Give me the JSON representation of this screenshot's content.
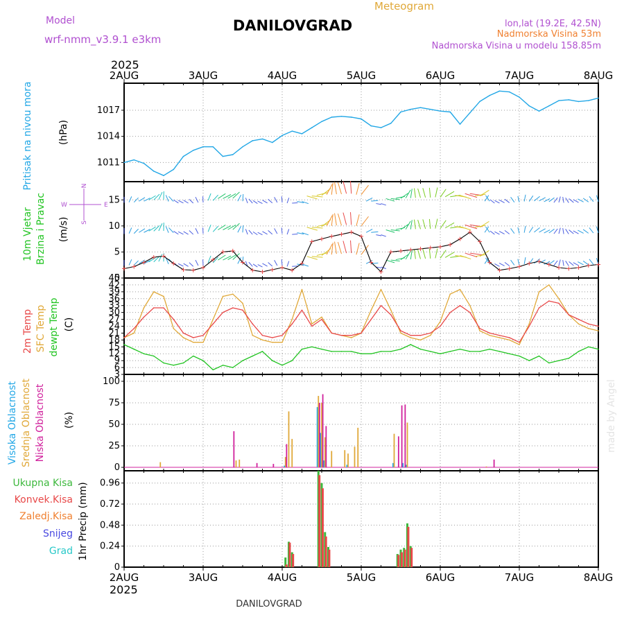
{
  "header": {
    "model_label": "Model",
    "model_name": "wrf-nmm_v3.9.1 e3km",
    "station_title": "DANILOVGRAD",
    "subtitle": "Meteogram",
    "coords": "lon,lat (19.2E, 42.5N)",
    "elevation": "Nadmorska Visina 53m",
    "model_elevation": "Nadmorska Visina u modelu 158.85m",
    "year": "2025",
    "footer_station": "DANILOVGRAD",
    "credit": "made by Angel"
  },
  "colors": {
    "pressure": "#22a7e6",
    "temp2m": "#e84848",
    "sfc_temp": "#e0a838",
    "dewpoint": "#22c422",
    "high_cloud": "#22a7e6",
    "mid_cloud": "#e0a838",
    "low_cloud": "#d0209c",
    "total_precip": "#3cb83c",
    "convective_precip": "#e84848",
    "frozen_precip": "#f08030",
    "snow": "#4848e0",
    "hail": "#28c8c8",
    "header_purple": "#b050d0",
    "header_orange": "#e0a838",
    "wind_label_purple": "#b050d0"
  },
  "axis": {
    "day_ticks": [
      "2AUG",
      "3AUG",
      "4AUG",
      "5AUG",
      "6AUG",
      "7AUG",
      "8AUG"
    ]
  },
  "legend": {
    "pressure": {
      "label": "Pritisak na nivou mora",
      "unit": "(hPa)"
    },
    "wind": {
      "label1": "10m Vjetar",
      "label2": "Brzina i Pravac",
      "unit": "(m/s)",
      "compass_n": "N",
      "compass_s": "S",
      "compass_w": "W",
      "compass_e": "E"
    },
    "temp": {
      "label1": "2m Temp",
      "label2": "SFC Temp",
      "label3": "dewpt Temp",
      "unit": "(C)"
    },
    "cloud": {
      "label1": "Visoka Oblacnost",
      "label2": "Srednja Oblacnost",
      "label3": "Niska Oblacnost",
      "unit": "(%)"
    },
    "precip": {
      "total": "Ukupna Kisa",
      "convective": "Konvek.Kisa",
      "frozen": "Zaledj.Kisa",
      "snow": "Snijeg",
      "hail": "Grad",
      "axis_label": "1hr Precip (mm)"
    }
  },
  "chart_data": [
    {
      "panel": "pressure",
      "type": "line",
      "title": "Pritisak na nivou mora",
      "ylabel": "(hPa)",
      "ylim": [
        1008.8,
        1020.1
      ],
      "yticks": [
        1011,
        1014,
        1017
      ],
      "x_unit": "hours since 2 Aug 00:00",
      "x_range": [
        0,
        144
      ],
      "series": [
        {
          "name": "Pritisak na nivou mora",
          "x": [
            0,
            3,
            6,
            9,
            12,
            15,
            18,
            21,
            24,
            27,
            30,
            33,
            36,
            39,
            42,
            45,
            48,
            51,
            54,
            57,
            60,
            63,
            66,
            69,
            72,
            75,
            78,
            81,
            84,
            87,
            90,
            93,
            96,
            99,
            102,
            105,
            108,
            111,
            114,
            117,
            120,
            123,
            126,
            129,
            132,
            135,
            138,
            141,
            144
          ],
          "values": [
            1011.0,
            1011.3,
            1010.9,
            1010.0,
            1009.5,
            1010.2,
            1011.7,
            1012.4,
            1012.8,
            1012.8,
            1011.7,
            1011.9,
            1012.8,
            1013.5,
            1013.7,
            1013.3,
            1014.1,
            1014.6,
            1014.3,
            1015.0,
            1015.7,
            1016.2,
            1016.3,
            1016.2,
            1016.0,
            1015.2,
            1015.0,
            1015.5,
            1016.8,
            1017.1,
            1017.3,
            1017.1,
            1016.9,
            1016.8,
            1015.4,
            1016.7,
            1018.0,
            1018.7,
            1019.2,
            1019.1,
            1018.5,
            1017.5,
            1016.9,
            1017.5,
            1018.1,
            1018.2,
            1018.0,
            1018.1,
            1018.4
          ]
        }
      ]
    },
    {
      "panel": "wind",
      "type": "line",
      "title": "10m Vjetar Brzina i Pravac",
      "ylabel": "(m/s)",
      "ylim": [
        0,
        18.5
      ],
      "yticks": [
        0,
        5,
        10,
        15
      ],
      "x_unit": "hours since 2 Aug 00:00",
      "x_range": [
        0,
        144
      ],
      "series": [
        {
          "name": "Brzina vjetra",
          "x": [
            0,
            3,
            6,
            9,
            12,
            15,
            18,
            21,
            24,
            27,
            30,
            33,
            36,
            39,
            42,
            45,
            48,
            51,
            54,
            57,
            60,
            63,
            66,
            69,
            72,
            75,
            78,
            81,
            84,
            87,
            90,
            93,
            96,
            99,
            102,
            105,
            108,
            111,
            114,
            117,
            120,
            123,
            126,
            129,
            132,
            135,
            138,
            141,
            144
          ],
          "values": [
            1.8,
            2.2,
            3.0,
            4.0,
            4.2,
            2.8,
            1.6,
            1.5,
            2.0,
            3.5,
            5.0,
            5.2,
            3.0,
            1.5,
            1.2,
            1.6,
            2.0,
            1.5,
            2.8,
            7.0,
            7.5,
            8.0,
            8.4,
            8.8,
            8.0,
            3.0,
            1.2,
            5.0,
            5.2,
            5.4,
            5.6,
            5.8,
            6.0,
            6.4,
            7.5,
            8.8,
            7.0,
            3.0,
            1.5,
            1.8,
            2.2,
            2.8,
            3.2,
            2.6,
            2.0,
            1.8,
            2.0,
            2.4,
            2.6
          ]
        }
      ]
    },
    {
      "panel": "temperature",
      "type": "line",
      "title": "2m Temp / SFC Temp / dewpt Temp",
      "ylabel": "(C)",
      "ylim": [
        3,
        45
      ],
      "yticks": [
        3,
        6,
        9,
        12,
        15,
        18,
        21,
        24,
        27,
        30,
        33,
        36,
        39,
        42,
        45
      ],
      "x_unit": "hours since 2 Aug 00:00",
      "x_range": [
        0,
        144
      ],
      "series": [
        {
          "name": "2m Temp",
          "x": [
            0,
            3,
            6,
            9,
            12,
            15,
            18,
            21,
            24,
            27,
            30,
            33,
            36,
            39,
            42,
            45,
            48,
            51,
            54,
            57,
            60,
            63,
            66,
            69,
            72,
            75,
            78,
            81,
            84,
            87,
            90,
            93,
            96,
            99,
            102,
            105,
            108,
            111,
            114,
            117,
            120,
            123,
            126,
            129,
            132,
            135,
            138,
            141,
            144
          ],
          "values": [
            19,
            23,
            28,
            32,
            32,
            27,
            21,
            19,
            20,
            25,
            30,
            32,
            31,
            25,
            20,
            19,
            20,
            25,
            31,
            24,
            27,
            21,
            20,
            20,
            21,
            27,
            33,
            29,
            22,
            20,
            20,
            21,
            24,
            30,
            33,
            30,
            23,
            21,
            20,
            19,
            17,
            24,
            32,
            35,
            34,
            29,
            27,
            25,
            24
          ]
        },
        {
          "name": "SFC Temp",
          "x": [
            0,
            3,
            6,
            9,
            12,
            15,
            18,
            21,
            24,
            27,
            30,
            33,
            36,
            39,
            42,
            45,
            48,
            51,
            54,
            57,
            60,
            63,
            66,
            69,
            72,
            75,
            78,
            81,
            84,
            87,
            90,
            93,
            96,
            99,
            102,
            105,
            108,
            111,
            114,
            117,
            120,
            123,
            126,
            129,
            132,
            135,
            138,
            141,
            144
          ],
          "values": [
            19,
            21,
            32,
            39,
            37,
            23,
            19,
            17,
            17,
            27,
            37,
            38,
            34,
            20,
            18,
            17,
            17,
            27,
            40,
            25,
            28,
            21,
            20,
            19,
            21,
            31,
            40,
            31,
            21,
            19,
            18,
            20,
            26,
            38,
            40,
            33,
            22,
            20,
            19,
            18,
            16,
            25,
            39,
            42,
            36,
            29,
            25,
            23,
            22
          ]
        },
        {
          "name": "dewpt Temp",
          "x": [
            0,
            3,
            6,
            9,
            12,
            15,
            18,
            21,
            24,
            27,
            30,
            33,
            36,
            39,
            42,
            45,
            48,
            51,
            54,
            57,
            60,
            63,
            66,
            69,
            72,
            75,
            78,
            81,
            84,
            87,
            90,
            93,
            96,
            99,
            102,
            105,
            108,
            111,
            114,
            117,
            120,
            123,
            126,
            129,
            132,
            135,
            138,
            141,
            144
          ],
          "values": [
            16,
            14,
            12,
            11,
            8,
            7,
            8,
            11,
            9,
            5,
            7,
            6,
            9,
            11,
            13,
            9,
            7,
            9,
            14,
            15,
            14,
            13,
            13,
            13,
            12,
            12,
            13,
            13,
            14,
            16,
            14,
            13,
            12,
            13,
            14,
            13,
            13,
            14,
            13,
            12,
            11,
            9,
            11,
            8,
            9,
            10,
            13,
            15,
            14
          ]
        }
      ]
    },
    {
      "panel": "cloud",
      "type": "bar",
      "title": "Visoka / Srednja / Niska Oblacnost",
      "ylabel": "(%)",
      "ylim": [
        -4,
        108
      ],
      "yticks": [
        0,
        25,
        50,
        75,
        100
      ],
      "x_unit": "hours since 2 Aug 00:00",
      "x_range": [
        0,
        144
      ],
      "series": [
        {
          "name": "Visoka Oblacnost",
          "x": [
            49,
            59,
            59.5,
            60,
            60.5,
            61,
            68,
            82,
            85,
            86
          ],
          "values": [
            2,
            70,
            75,
            40,
            20,
            8,
            3,
            5,
            5,
            3
          ]
        },
        {
          "name": "Srednja Oblacnost",
          "x": [
            11,
            34,
            35,
            49,
            50,
            51,
            59,
            60,
            61,
            63,
            67,
            68,
            70,
            71,
            82,
            86,
            110
          ],
          "values": [
            6,
            8,
            9,
            12,
            65,
            33,
            83,
            75,
            35,
            19,
            20,
            16,
            24,
            46,
            39,
            52,
            1
          ]
        },
        {
          "name": "Niska Oblacnost",
          "x": [
            33,
            40,
            45,
            49,
            59,
            60,
            61,
            83,
            84,
            85,
            112
          ],
          "values": [
            42,
            5,
            4,
            27,
            75,
            85,
            48,
            36,
            72,
            73,
            9
          ]
        }
      ]
    },
    {
      "panel": "precipitation",
      "type": "bar",
      "title": "1hr Precip",
      "ylabel": "1hr Precip (mm)",
      "ylim": [
        0,
        1.1
      ],
      "yticks": [
        0,
        0.24,
        0.48,
        0.72,
        0.96
      ],
      "x_unit": "hours since 2 Aug 00:00",
      "x_range": [
        0,
        144
      ],
      "series": [
        {
          "name": "Ukupna Kisa",
          "x": [
            49,
            50,
            51,
            59,
            60,
            61,
            62,
            83,
            84,
            85,
            86,
            87
          ],
          "values": [
            0.11,
            0.29,
            0.17,
            1.1,
            0.96,
            0.4,
            0.23,
            0.15,
            0.2,
            0.22,
            0.5,
            0.24
          ]
        },
        {
          "name": "Konvek.Kisa",
          "x": [
            49.3,
            50.3,
            51.3,
            59.3,
            60.3,
            61.3,
            62.3,
            83.3,
            84.3,
            85.3,
            86.3,
            87.3
          ],
          "values": [
            0.03,
            0.28,
            0.15,
            1.05,
            0.9,
            0.35,
            0.2,
            0.14,
            0.17,
            0.2,
            0.46,
            0.22
          ]
        },
        {
          "name": "Zaledj.Kisa",
          "x": [],
          "values": []
        },
        {
          "name": "Snijeg",
          "x": [],
          "values": []
        },
        {
          "name": "Grad",
          "x": [],
          "values": []
        }
      ]
    }
  ]
}
